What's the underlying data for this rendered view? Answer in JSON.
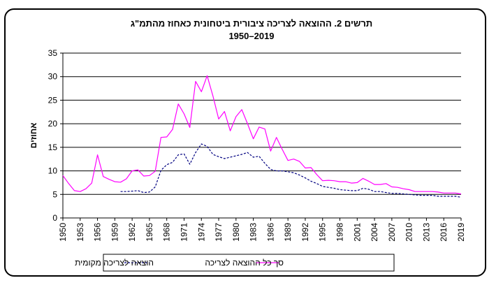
{
  "chart_data": {
    "type": "line",
    "title": "תרשים 2. ההוצאה לצריכה ציבורית ביטחונית כאחוז מהתמ\"ג",
    "subtitle": "1950–2019",
    "ylabel": "אחוזים",
    "xlabel": "",
    "ylim": [
      0,
      35
    ],
    "yticks": [
      0,
      5,
      10,
      15,
      20,
      25,
      30,
      35
    ],
    "xlim": [
      1950,
      2019
    ],
    "xticks": [
      1950,
      1953,
      1956,
      1959,
      1962,
      1965,
      1968,
      1971,
      1974,
      1977,
      1980,
      1983,
      1986,
      1989,
      1992,
      1995,
      1998,
      2001,
      2004,
      2007,
      2010,
      2013,
      2016,
      2019
    ],
    "grid": "horizontal",
    "legend_position": "bottom",
    "series": [
      {
        "name": "סך כל ההוצאה לצריכה",
        "color": "#ff00ff",
        "style": "solid",
        "x": [
          1950,
          1951,
          1952,
          1953,
          1954,
          1955,
          1956,
          1957,
          1958,
          1959,
          1960,
          1961,
          1962,
          1963,
          1964,
          1965,
          1966,
          1967,
          1968,
          1969,
          1970,
          1971,
          1972,
          1973,
          1974,
          1975,
          1976,
          1977,
          1978,
          1979,
          1980,
          1981,
          1982,
          1983,
          1984,
          1985,
          1986,
          1987,
          1988,
          1989,
          1990,
          1991,
          1992,
          1993,
          1994,
          1995,
          1996,
          1997,
          1998,
          1999,
          2000,
          2001,
          2002,
          2003,
          2004,
          2005,
          2006,
          2007,
          2008,
          2009,
          2010,
          2011,
          2012,
          2013,
          2014,
          2015,
          2016,
          2017,
          2018,
          2019
        ],
        "y": [
          9.0,
          7.3,
          5.8,
          5.6,
          6.2,
          7.4,
          13.4,
          8.8,
          8.2,
          7.7,
          7.6,
          8.3,
          10.0,
          10.2,
          8.9,
          9.0,
          9.9,
          17.1,
          17.2,
          18.8,
          24.2,
          22.1,
          19.2,
          29.0,
          26.8,
          30.2,
          25.9,
          21.0,
          22.6,
          18.5,
          21.5,
          23.0,
          20.0,
          16.8,
          19.3,
          18.9,
          14.2,
          17.1,
          14.6,
          12.2,
          12.5,
          12.0,
          10.6,
          10.7,
          9.2,
          7.9,
          8.0,
          7.9,
          7.7,
          7.7,
          7.4,
          7.5,
          8.4,
          7.8,
          7.1,
          7.1,
          7.3,
          6.6,
          6.5,
          6.2,
          6.0,
          5.6,
          5.6,
          5.6,
          5.6,
          5.5,
          5.3,
          5.3,
          5.3,
          5.1
        ]
      },
      {
        "name": "הוצאה לצריכה מקומית",
        "color": "#000080",
        "style": "dashed",
        "x": [
          1960,
          1961,
          1962,
          1963,
          1964,
          1965,
          1966,
          1967,
          1968,
          1969,
          1970,
          1971,
          1972,
          1973,
          1974,
          1975,
          1976,
          1977,
          1978,
          1979,
          1980,
          1981,
          1982,
          1983,
          1984,
          1985,
          1986,
          1987,
          1988,
          1989,
          1990,
          1991,
          1992,
          1993,
          1994,
          1995,
          1996,
          1997,
          1998,
          1999,
          2000,
          2001,
          2002,
          2003,
          2004,
          2005,
          2006,
          2007,
          2008,
          2009,
          2010,
          2011,
          2012,
          2013,
          2014,
          2015,
          2016,
          2017,
          2018,
          2019
        ],
        "y": [
          5.6,
          5.6,
          5.7,
          5.8,
          5.4,
          5.5,
          6.6,
          10.1,
          11.3,
          11.8,
          13.4,
          13.6,
          11.4,
          13.9,
          15.7,
          15.2,
          13.5,
          13.0,
          12.6,
          12.9,
          13.2,
          13.5,
          13.9,
          12.9,
          13.1,
          11.6,
          10.3,
          10.0,
          10.0,
          9.8,
          9.6,
          9.1,
          8.5,
          7.8,
          7.3,
          6.7,
          6.5,
          6.3,
          6.0,
          5.9,
          5.8,
          5.8,
          6.3,
          6.1,
          5.6,
          5.6,
          5.4,
          5.2,
          5.2,
          5.1,
          5.0,
          4.9,
          4.8,
          4.8,
          4.8,
          4.6,
          4.6,
          4.6,
          4.6,
          4.4
        ]
      }
    ]
  }
}
